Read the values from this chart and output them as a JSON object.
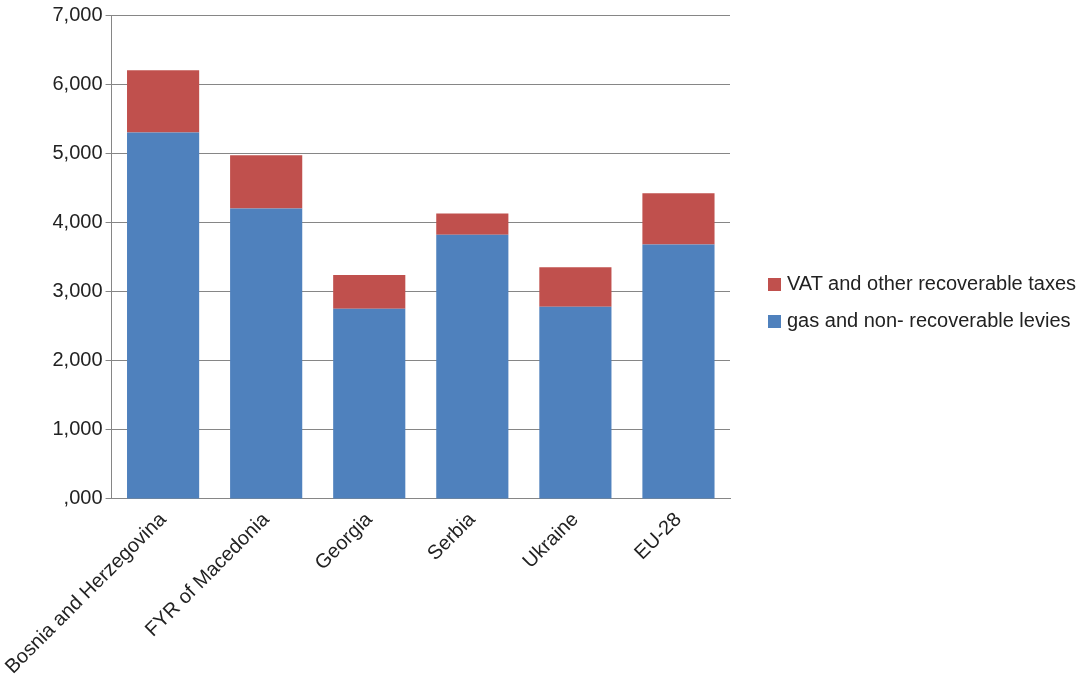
{
  "chart_data": {
    "type": "bar",
    "stacked": true,
    "categories": [
      "Bosnia and Herzegovina",
      "FYR of Macedonia",
      "Georgia",
      "Serbia",
      "Ukraine",
      "EU-28"
    ],
    "series": [
      {
        "name": "gas and non- recoverable levies",
        "color": "#4f81bd",
        "values": [
          5300,
          4200,
          2750,
          3820,
          2780,
          3680
        ]
      },
      {
        "name": "VAT and other recoverable taxes",
        "color": "#c0504d",
        "values": [
          900,
          770,
          490,
          310,
          570,
          740
        ]
      }
    ],
    "ylim": [
      0,
      7000
    ],
    "yticks": [
      {
        "value": 0,
        "label": ",000"
      },
      {
        "value": 1000,
        "label": "1,000"
      },
      {
        "value": 2000,
        "label": "2,000"
      },
      {
        "value": 3000,
        "label": "3,000"
      },
      {
        "value": 4000,
        "label": "4,000"
      },
      {
        "value": 5000,
        "label": "5,000"
      },
      {
        "value": 6000,
        "label": "6,000"
      },
      {
        "value": 7000,
        "label": "7,000"
      }
    ],
    "grid": "y",
    "legend": "right"
  }
}
